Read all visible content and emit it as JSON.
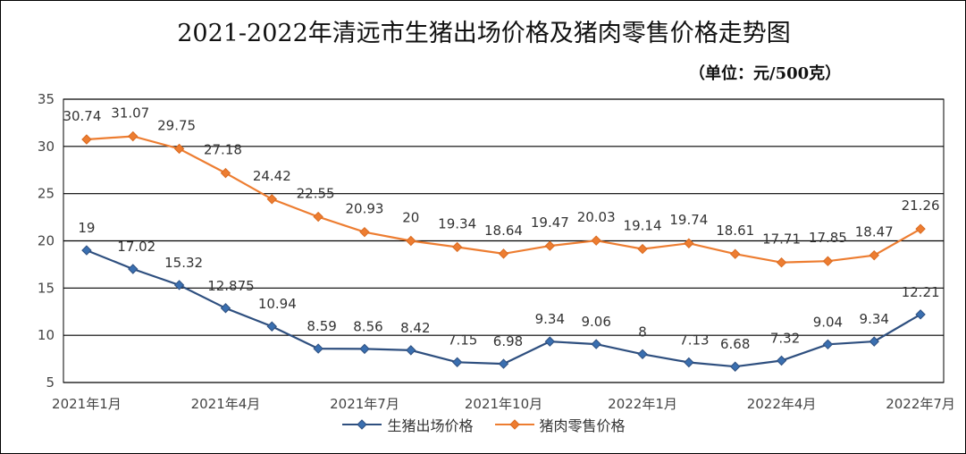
{
  "title": "2021-2022年清远市生猪出场价格及猪肉零售价格走势图",
  "unit": "（单位：元/500克）",
  "chart_data": {
    "type": "line",
    "title": "2021-2022年清远市生猪出场价格及猪肉零售价格走势图",
    "unit": "（单位：元/500克）",
    "ylim": [
      5,
      35
    ],
    "yticks": [
      5,
      10,
      15,
      20,
      25,
      30,
      35
    ],
    "x_tick_labels": [
      "2021年1月",
      "2021年4月",
      "2021年7月",
      "2021年10月",
      "2022年1月",
      "2022年4月",
      "2022年7月"
    ],
    "grid": true,
    "legend_position": "bottom",
    "series": [
      {
        "name": "生猪出场价格",
        "color": "#2e4f7f",
        "marker": "diamond",
        "values": [
          19,
          17.02,
          15.32,
          12.875,
          10.94,
          8.59,
          8.56,
          8.42,
          7.15,
          6.98,
          9.34,
          9.06,
          8,
          7.13,
          6.68,
          7.32,
          9.04,
          9.34,
          12.21
        ],
        "labels": [
          "19",
          "17.02",
          "15.32",
          "12.875",
          "10.94",
          "8.59",
          "8.56",
          "8.42",
          "7.15",
          "6.98",
          "9.34",
          "9.06",
          "8",
          "7.13",
          "6.68",
          "7.32",
          "9.04",
          "9.34",
          "12.21"
        ]
      },
      {
        "name": "猪肉零售价格",
        "color": "#ed7d31",
        "marker": "diamond",
        "values": [
          30.74,
          31.07,
          29.75,
          27.18,
          24.42,
          22.55,
          20.93,
          20,
          19.34,
          18.64,
          19.47,
          20.03,
          19.14,
          19.74,
          18.61,
          17.71,
          17.85,
          18.47,
          21.26
        ],
        "labels": [
          "30.74",
          "31.07",
          "29.75",
          "27.18",
          "24.42",
          "22.55",
          "20.93",
          "20",
          "19.34",
          "18.64",
          "19.47",
          "20.03",
          "19.14",
          "19.74",
          "18.61",
          "17.71",
          "17.85",
          "18.47",
          "21.26"
        ]
      }
    ]
  }
}
